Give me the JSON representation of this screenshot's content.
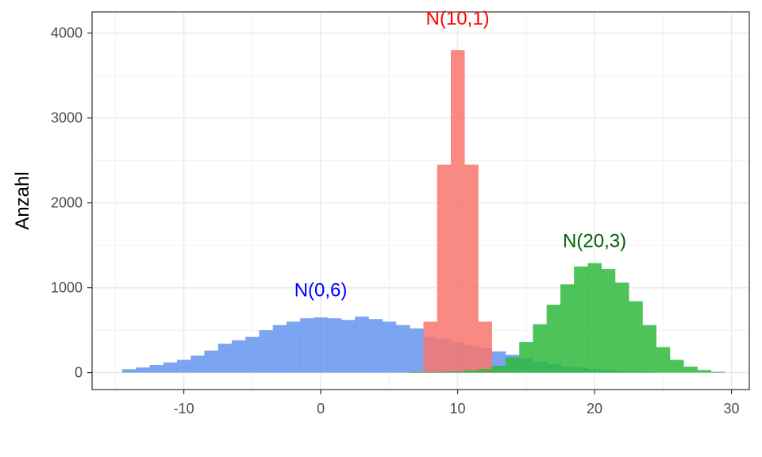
{
  "chart_data": {
    "type": "bar",
    "subtype": "overlapping-histogram",
    "title": "",
    "xlabel": "",
    "ylabel": "Anzahl",
    "xlim": [
      -16.7,
      31.3
    ],
    "ylim": [
      -200,
      4250
    ],
    "x_ticks": [
      -10,
      0,
      10,
      20,
      30
    ],
    "x_tick_labels": [
      "-10",
      "0",
      "10",
      "20",
      "30"
    ],
    "y_ticks": [
      0,
      1000,
      2000,
      3000,
      4000
    ],
    "y_tick_labels": [
      "0",
      "1000",
      "2000",
      "3000",
      "4000"
    ],
    "grid": true,
    "legend": "none",
    "bin_width": 1,
    "series": [
      {
        "name": "N(0,6)",
        "color": "#6495ED",
        "bin_start": -14.5,
        "values": [
          40,
          60,
          90,
          120,
          150,
          200,
          260,
          340,
          380,
          420,
          500,
          560,
          600,
          640,
          650,
          640,
          620,
          660,
          630,
          600,
          560,
          520,
          420,
          400,
          360,
          320,
          290,
          250,
          210,
          170,
          130,
          100,
          70,
          60,
          40,
          30,
          20,
          10,
          5,
          3,
          0,
          0,
          0,
          0
        ]
      },
      {
        "name": "N(10,1)",
        "color": "#F8766D",
        "bin_start": 6.5,
        "values": [
          10,
          600,
          2450,
          3800,
          2450,
          600,
          30
        ]
      },
      {
        "name": "N(20,3)",
        "color": "#2EB83C",
        "bin_start": 6.5,
        "values": [
          5,
          8,
          10,
          15,
          25,
          40,
          80,
          180,
          360,
          570,
          800,
          1040,
          1250,
          1290,
          1220,
          1060,
          840,
          560,
          300,
          150,
          70,
          30,
          10
        ]
      }
    ],
    "annotations": [
      {
        "text": "N(0,6)",
        "x": 0,
        "y": 900,
        "color": "#0000FF"
      },
      {
        "text": "N(10,1)",
        "x": 10,
        "y": 4100,
        "color": "#FF0000"
      },
      {
        "text": "N(20,3)",
        "x": 20,
        "y": 1480,
        "color": "#006400"
      }
    ]
  }
}
